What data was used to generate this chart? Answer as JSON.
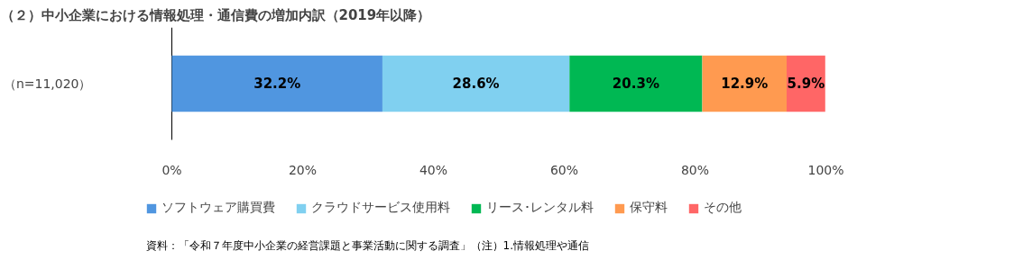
{
  "chart_data": {
    "type": "bar",
    "orientation": "horizontal",
    "stacked": true,
    "data_labels": true,
    "title": "（２）中小企業における情報処理・通信費の増加内訳（2019年以降）",
    "categories": [
      "（n=11,020）"
    ],
    "series": [
      {
        "name": "ソフトウェア購買費",
        "color": "#5096e0",
        "values": [
          32.2
        ],
        "value_labels": [
          "32.2%"
        ]
      },
      {
        "name": "クラウドサービス使用料",
        "color": "#80d0f0",
        "values": [
          28.6
        ],
        "value_labels": [
          "28.6%"
        ]
      },
      {
        "name": "リース･レンタル料",
        "color": "#00b853",
        "values": [
          20.3
        ],
        "value_labels": [
          "20.3%"
        ]
      },
      {
        "name": "保守料",
        "color": "#ff9a50",
        "values": [
          12.9
        ],
        "value_labels": [
          "12.9%"
        ]
      },
      {
        "name": "その他",
        "color": "#ff6666",
        "values": [
          5.9
        ],
        "value_labels": [
          "5.9%"
        ]
      }
    ],
    "xlim": [
      0,
      100
    ],
    "xticks": [
      {
        "value": 0,
        "label": "0%"
      },
      {
        "value": 20,
        "label": "20%"
      },
      {
        "value": 40,
        "label": "40%"
      },
      {
        "value": 60,
        "label": "60%"
      },
      {
        "value": 80,
        "label": "80%"
      },
      {
        "value": 100,
        "label": "100%"
      }
    ],
    "grid": false,
    "legend": "bottom",
    "annotations": [
      "資料：「令和７年度中小企業の経営課題と事業活動に関する調査」（注）1.情報処理や通信"
    ]
  }
}
